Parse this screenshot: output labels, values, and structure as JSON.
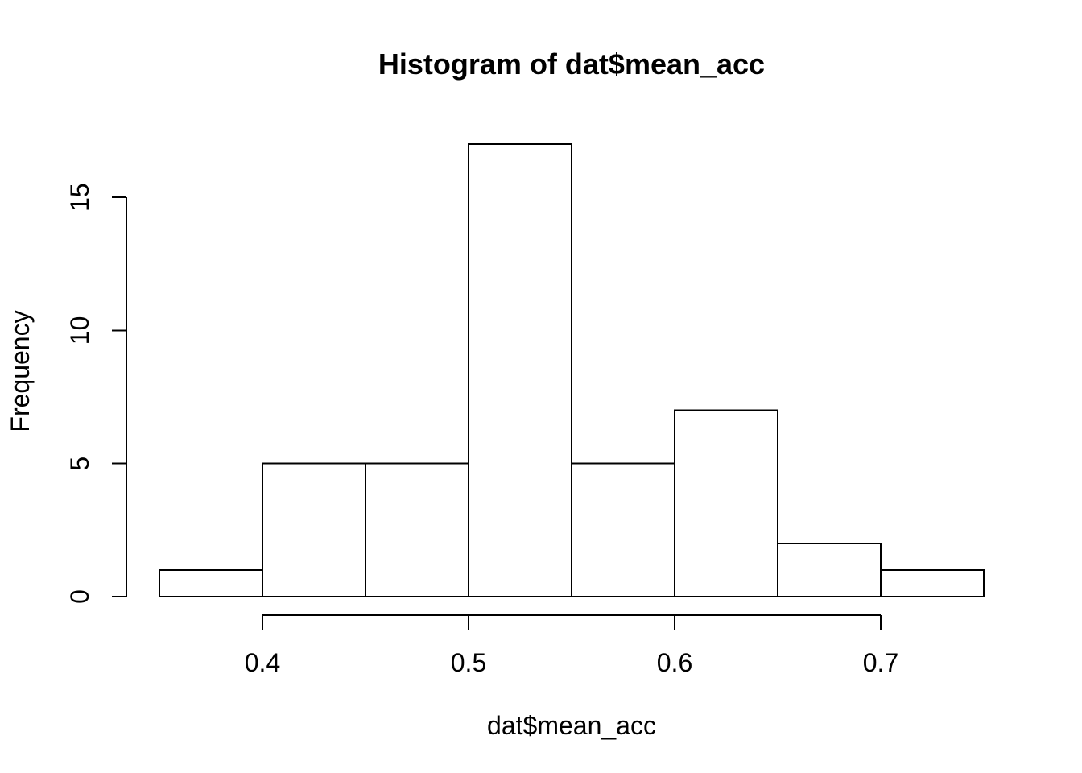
{
  "chart_data": {
    "type": "bar",
    "title": "Histogram of dat$mean_acc",
    "xlabel": "dat$mean_acc",
    "ylabel": "Frequency",
    "bins": [
      {
        "start": 0.35,
        "end": 0.4,
        "count": 1
      },
      {
        "start": 0.4,
        "end": 0.45,
        "count": 5
      },
      {
        "start": 0.45,
        "end": 0.5,
        "count": 5
      },
      {
        "start": 0.5,
        "end": 0.55,
        "count": 17
      },
      {
        "start": 0.55,
        "end": 0.6,
        "count": 5
      },
      {
        "start": 0.6,
        "end": 0.65,
        "count": 7
      },
      {
        "start": 0.65,
        "end": 0.7,
        "count": 2
      },
      {
        "start": 0.7,
        "end": 0.75,
        "count": 1
      }
    ],
    "x_ticks": [
      {
        "value": 0.4,
        "label": "0.4"
      },
      {
        "value": 0.5,
        "label": "0.5"
      },
      {
        "value": 0.6,
        "label": "0.6"
      },
      {
        "value": 0.7,
        "label": "0.7"
      }
    ],
    "y_ticks": [
      {
        "value": 0,
        "label": "0"
      },
      {
        "value": 5,
        "label": "5"
      },
      {
        "value": 10,
        "label": "10"
      },
      {
        "value": 15,
        "label": "15"
      }
    ],
    "xlim": [
      0.35,
      0.75
    ],
    "ylim": [
      0,
      17
    ],
    "grid": false,
    "bar_fill": "#ffffff",
    "bar_stroke": "#000000"
  }
}
